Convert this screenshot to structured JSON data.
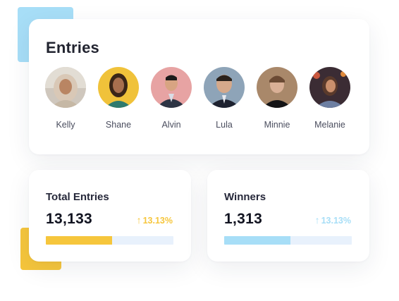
{
  "entries": {
    "title": "Entries",
    "people": [
      {
        "name": "Kelly"
      },
      {
        "name": "Shane"
      },
      {
        "name": "Alvin"
      },
      {
        "name": "Lula"
      },
      {
        "name": "Minnie"
      },
      {
        "name": "Melanie"
      }
    ]
  },
  "stats": {
    "total_entries": {
      "label": "Total Entries",
      "value": "13,133",
      "change": "13.13%",
      "progress": 0.52,
      "color": "#f6c63c"
    },
    "winners": {
      "label": "Winners",
      "value": "1,313",
      "change": "13.13%",
      "progress": 0.52,
      "color": "#a7def7"
    }
  },
  "icons": {
    "up_arrow": "↑"
  }
}
